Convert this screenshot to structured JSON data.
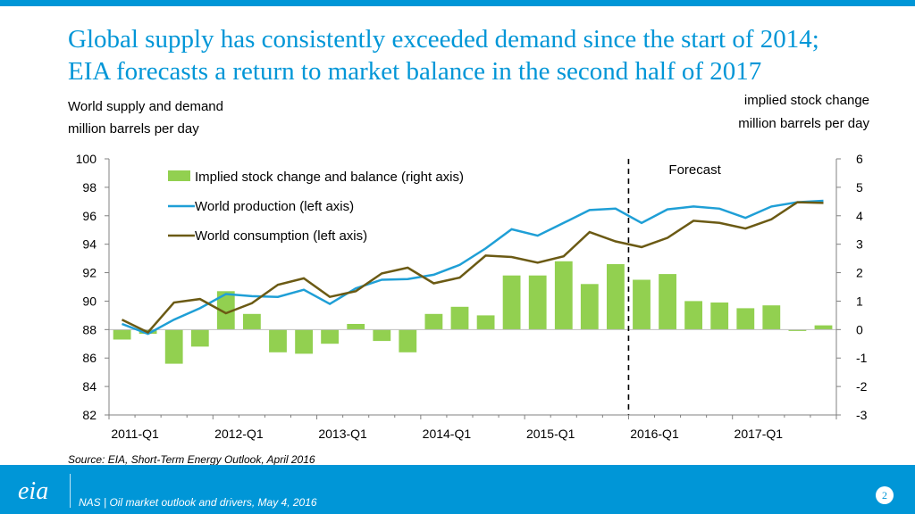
{
  "header": {
    "title_line1": "Global supply has consistently exceeded demand since the start of 2014;",
    "title_line2": "EIA forecasts a return to market balance in the second half of 2017"
  },
  "labels": {
    "left_axis_line1": "World supply and demand",
    "left_axis_line2": "million barrels per day",
    "right_axis_line1": "implied stock change",
    "right_axis_line2": "million barrels per day",
    "forecast": "Forecast"
  },
  "source": "Source: EIA, Short-Term Energy Outlook, April 2016",
  "footer": {
    "logo": "eia",
    "text": "NAS | Oil market outlook and drivers, May 4, 2016",
    "page": "2"
  },
  "colors": {
    "accent": "#0096d7",
    "bars": "#92d050",
    "production": "#1f9fd6",
    "consumption": "#6b5a14"
  },
  "chart_data": {
    "type": "bar",
    "x_tick_labels": [
      "2011-Q1",
      "2012-Q1",
      "2013-Q1",
      "2014-Q1",
      "2015-Q1",
      "2016-Q1",
      "2017-Q1"
    ],
    "left_ylim": [
      82,
      100
    ],
    "left_ticks": [
      "100",
      "98",
      "96",
      "94",
      "92",
      "90",
      "88",
      "86",
      "84",
      "82"
    ],
    "right_ylim": [
      -3,
      6
    ],
    "right_ticks": [
      "6",
      "5",
      "4",
      "3",
      "2",
      "1",
      "0",
      "-1",
      "-2",
      "-3"
    ],
    "forecast_start_quarter_index": 20,
    "legend": [
      "Implied stock change and balance (right axis)",
      "World production (left axis)",
      "World consumption (left axis)"
    ],
    "series": [
      {
        "name": "Implied stock change and balance (right axis)",
        "axis": "right",
        "type": "bar",
        "values": [
          -0.35,
          -0.15,
          -1.2,
          -0.6,
          1.35,
          0.55,
          -0.8,
          -0.85,
          -0.5,
          0.2,
          -0.4,
          -0.8,
          0.55,
          0.8,
          0.5,
          1.9,
          1.9,
          2.4,
          1.6,
          2.3,
          1.75,
          1.95,
          1.0,
          0.95,
          0.75,
          0.85,
          -0.05,
          0.15
        ]
      },
      {
        "name": "World production (left axis)",
        "axis": "left",
        "type": "line",
        "values": [
          88.4,
          87.7,
          88.7,
          89.5,
          90.5,
          90.35,
          90.3,
          90.8,
          89.8,
          90.9,
          91.5,
          91.55,
          91.85,
          92.55,
          93.7,
          95.05,
          94.6,
          95.5,
          96.4,
          96.5,
          95.5,
          96.45,
          96.65,
          96.5,
          95.85,
          96.65,
          96.95,
          97.05
        ]
      },
      {
        "name": "World consumption (left axis)",
        "axis": "left",
        "type": "line",
        "values": [
          88.7,
          87.8,
          89.9,
          90.15,
          89.15,
          89.85,
          91.15,
          91.6,
          90.3,
          90.7,
          91.95,
          92.35,
          91.25,
          91.65,
          93.2,
          93.1,
          92.7,
          93.15,
          94.85,
          94.2,
          93.8,
          94.45,
          95.65,
          95.5,
          95.1,
          95.75,
          96.95,
          96.9
        ]
      }
    ]
  }
}
